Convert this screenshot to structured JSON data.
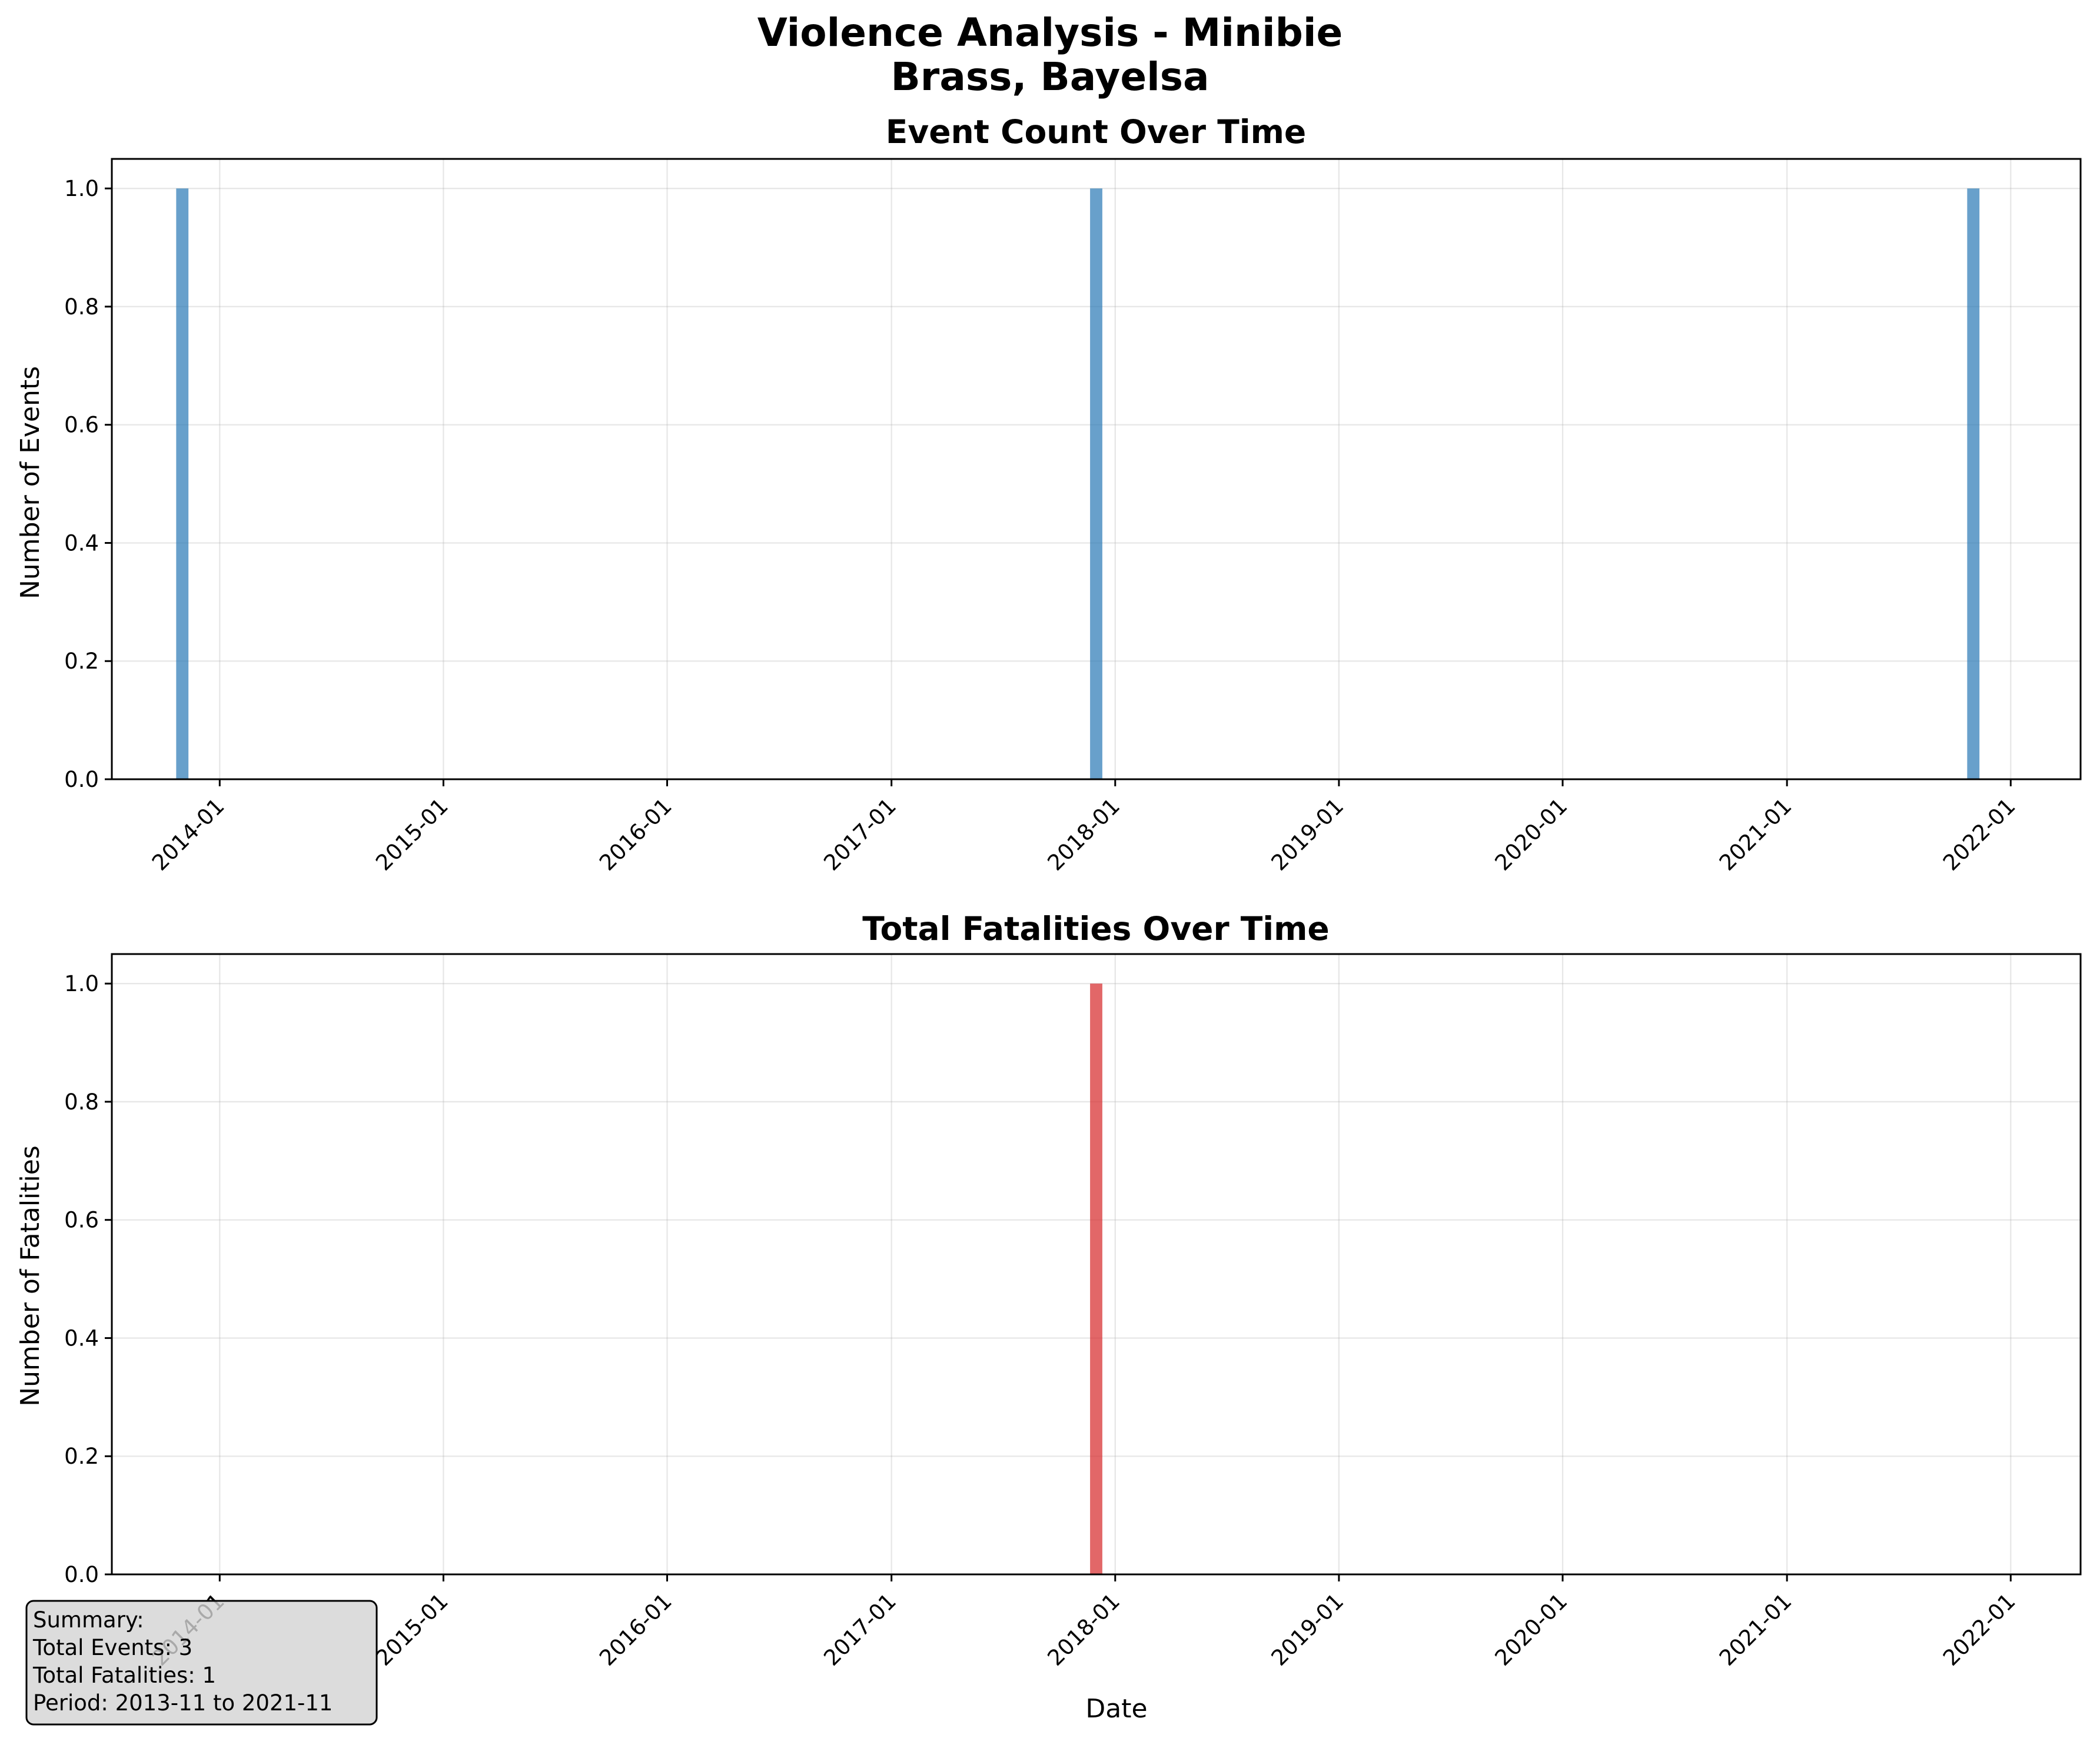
{
  "figure": {
    "title_line1": "Violence Analysis - Minibie",
    "title_line2": "Brass, Bayelsa"
  },
  "chart_data": [
    {
      "type": "bar",
      "title": "Event Count Over Time",
      "xlabel": "",
      "ylabel": "Number of Events",
      "x_ticks": [
        "2014-01",
        "2015-01",
        "2016-01",
        "2017-01",
        "2018-01",
        "2019-01",
        "2020-01",
        "2021-01",
        "2022-01"
      ],
      "y_ticks": [
        "0.0",
        "0.2",
        "0.4",
        "0.6",
        "0.8",
        "1.0"
      ],
      "xlim": [
        "2013-07-09",
        "2022-04-25"
      ],
      "ylim": [
        0,
        1.05
      ],
      "bars": [
        {
          "x": "2013-11",
          "value": 1
        },
        {
          "x": "2017-12",
          "value": 1
        },
        {
          "x": "2021-11",
          "value": 1
        }
      ],
      "color": "#2878b5",
      "grid": true
    },
    {
      "type": "bar",
      "title": "Total Fatalities Over Time",
      "xlabel": "Date",
      "ylabel": "Number of Fatalities",
      "x_ticks": [
        "2014-01",
        "2015-01",
        "2016-01",
        "2017-01",
        "2018-01",
        "2019-01",
        "2020-01",
        "2021-01",
        "2022-01"
      ],
      "y_ticks": [
        "0.0",
        "0.2",
        "0.4",
        "0.6",
        "0.8",
        "1.0"
      ],
      "xlim": [
        "2013-07-09",
        "2022-04-25"
      ],
      "ylim": [
        0,
        1.05
      ],
      "bars": [
        {
          "x": "2017-12",
          "value": 1
        }
      ],
      "color": "#d62728",
      "grid": true
    }
  ],
  "summary": {
    "line1": "Summary:",
    "line2": "Total Events: 3",
    "line3": "Total Fatalities: 1",
    "line4": "Period: 2013-11 to 2021-11"
  }
}
